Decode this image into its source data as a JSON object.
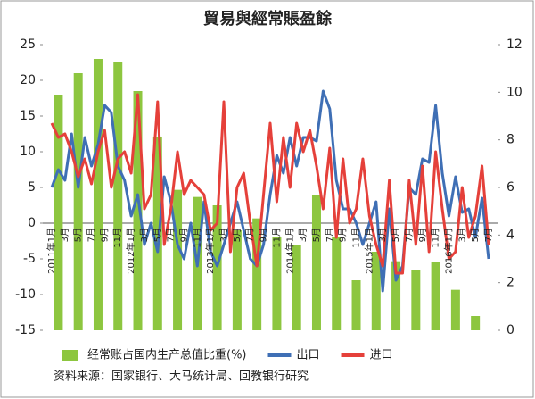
{
  "chart_data": {
    "type": "bar-line",
    "title": "貿易與經常賬盈餘",
    "source": "资料来源：国家银行、大马统计局、回教银行研究",
    "categories": [
      "2011年1月",
      null,
      "3月",
      null,
      "5月",
      null,
      "7月",
      null,
      "9月",
      null,
      "11月",
      null,
      "2012年1月",
      null,
      "3月",
      null,
      "5月",
      null,
      "7月",
      null,
      "9月",
      null,
      "11月",
      null,
      "2013年1月",
      null,
      "3月",
      null,
      "5月",
      null,
      "7月",
      null,
      "9月",
      null,
      "11月",
      null,
      "2014年1月",
      null,
      "3月",
      null,
      "5月",
      null,
      "7月",
      null,
      "9月",
      null,
      "11月",
      null,
      "2015年1月",
      null,
      "3月",
      null,
      "5月",
      null,
      "7月",
      null,
      "9月",
      null,
      "11月",
      null,
      "2016年1月",
      null,
      "3月",
      null,
      "5月",
      null,
      "7月"
    ],
    "series": [
      {
        "name": "经常账占国内生产总值比重(%)",
        "type": "bar",
        "axis": "y2",
        "color": "#8dc63f",
        "values": [
          null,
          9.9,
          null,
          null,
          10.8,
          null,
          null,
          11.4,
          null,
          null,
          11.25,
          null,
          null,
          10.05,
          null,
          null,
          8.1,
          null,
          null,
          5.9,
          null,
          null,
          5.6,
          null,
          null,
          5.25,
          null,
          null,
          4.2,
          null,
          null,
          4.7,
          null,
          null,
          3.9,
          null,
          null,
          3.6,
          null,
          null,
          5.7,
          null,
          null,
          3.9,
          null,
          null,
          2.1,
          null,
          null,
          3.3,
          null,
          null,
          2.9,
          null,
          null,
          2.55,
          null,
          null,
          2.85,
          null,
          null,
          1.7,
          null,
          null,
          0.6,
          null,
          null
        ]
      },
      {
        "name": "出口",
        "type": "line",
        "color": "#3f6fb5",
        "values": [
          5,
          7.5,
          6,
          12.5,
          5,
          12,
          8,
          11,
          16.5,
          15.5,
          8,
          6,
          1,
          4,
          -3,
          0,
          -4,
          6.5,
          3,
          -3,
          -5,
          0,
          -6,
          3,
          -4,
          -6,
          -3,
          0,
          3,
          -1,
          -5,
          -6,
          -3,
          4,
          9.5,
          7,
          12,
          8,
          12,
          12,
          11.5,
          18.5,
          16,
          6,
          2,
          2,
          0,
          -3,
          0,
          3,
          -9.5,
          2,
          -8,
          -6,
          5,
          4,
          9,
          8.5,
          16.5,
          7,
          1,
          6.5,
          1.5,
          2,
          -2,
          3.5,
          -5
        ]
      },
      {
        "name": "进口",
        "type": "line",
        "color": "#e5403a",
        "values": [
          14,
          12,
          12.5,
          10,
          6.5,
          9,
          5.5,
          10,
          13,
          5,
          9,
          10,
          7,
          18,
          2,
          4,
          17,
          -3,
          2,
          10,
          4,
          6,
          5,
          4,
          -1,
          0,
          17,
          -4,
          5,
          7,
          0,
          -6,
          4,
          14,
          3,
          12,
          5,
          14,
          10,
          13,
          8,
          2,
          10.5,
          -2,
          9,
          0,
          2,
          9,
          1,
          -3,
          -6,
          6,
          -7,
          -7,
          6,
          -3,
          8,
          -4,
          10,
          2,
          -5,
          -4,
          5,
          -2,
          1,
          8,
          -3
        ]
      }
    ],
    "ylim": [
      -15,
      25
    ],
    "yticks": [
      -15,
      -10,
      -5,
      0,
      5,
      10,
      15,
      20,
      25
    ],
    "y2lim": [
      0,
      12
    ],
    "y2ticks": [
      0,
      2,
      4,
      6,
      8,
      10,
      12
    ],
    "grid": false
  }
}
